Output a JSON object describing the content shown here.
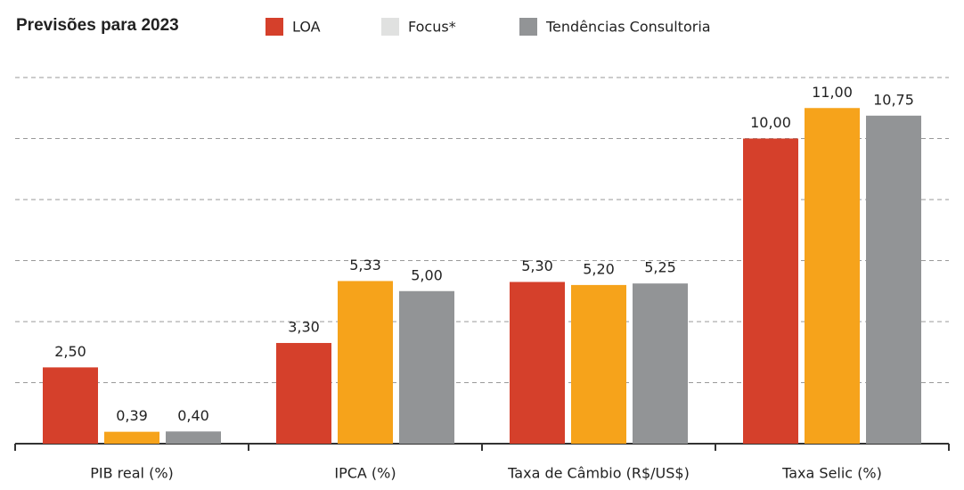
{
  "chart_data": {
    "type": "bar",
    "title": "Previsões para 2023",
    "categories": [
      "PIB real (%)",
      "IPCA (%)",
      "Taxa de Câmbio (R$/US$)",
      "Taxa Selic (%)"
    ],
    "series": [
      {
        "name": "LOA",
        "color": "#d5402b",
        "legend_color": "#d5402b",
        "values": [
          2.5,
          3.3,
          5.3,
          10
        ],
        "value_labels": [
          "2,50",
          "3,30",
          "5,30",
          "10,00"
        ]
      },
      {
        "name": "Focus*",
        "color": "#f6a31b",
        "legend_color": "#e0e1e0",
        "values": [
          0.39,
          5.33,
          5.2,
          11
        ],
        "value_labels": [
          "0,39",
          "5,33",
          "5,20",
          "11,00"
        ]
      },
      {
        "name": "Tendências Consultoria",
        "color": "#929496",
        "legend_color": "#929496",
        "values": [
          0.4,
          5,
          5.25,
          10.75
        ],
        "value_labels": [
          "0,40",
          "5,00",
          "5,25",
          "10,75"
        ]
      }
    ],
    "ylim": [
      0,
      12
    ],
    "yticks": [
      2,
      4,
      6,
      8,
      10,
      12
    ],
    "grid": true
  }
}
